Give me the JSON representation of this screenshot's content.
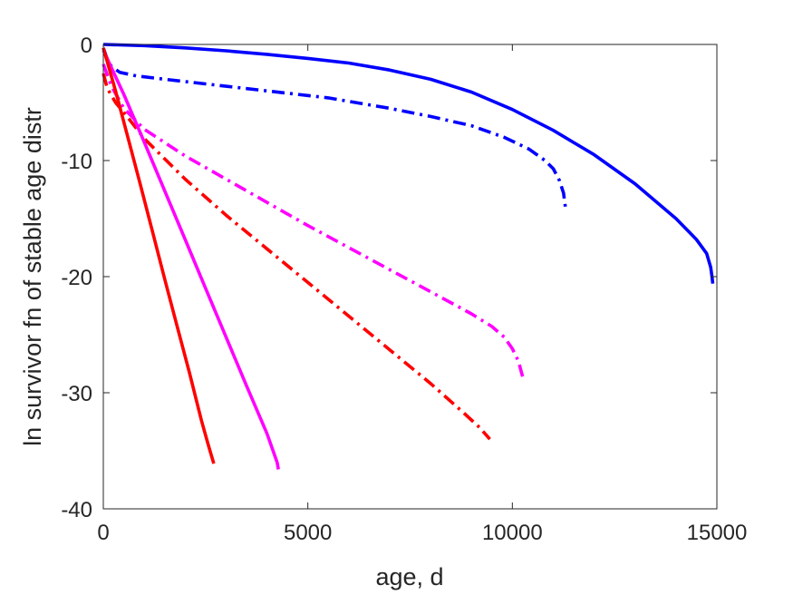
{
  "chart_data": {
    "type": "line",
    "title": "",
    "xlabel": "age, d",
    "ylabel": "ln survivor fn of stable age distr",
    "xlim": [
      0,
      15000
    ],
    "ylim": [
      -40,
      0
    ],
    "xticks": [
      0,
      5000,
      10000,
      15000
    ],
    "xtick_labels": [
      "0",
      "5000",
      "10000",
      "15000"
    ],
    "yticks": [
      -40,
      -30,
      -20,
      -10,
      0
    ],
    "ytick_labels": [
      "-40",
      "-30",
      "-20",
      "-10",
      "0"
    ],
    "grid": false,
    "legend": "none",
    "series": [
      {
        "color": "#0000ff",
        "style": "solid",
        "x": [
          0,
          1000,
          2000,
          3000,
          4000,
          5000,
          6000,
          7000,
          8000,
          9000,
          10000,
          11000,
          12000,
          13000,
          14000,
          14500,
          14750,
          14850,
          14880,
          14900
        ],
        "y": [
          0,
          -0.1,
          -0.3,
          -0.55,
          -0.85,
          -1.2,
          -1.6,
          -2.2,
          -3.0,
          -4.1,
          -5.6,
          -7.4,
          -9.5,
          -12.0,
          -15.0,
          -16.8,
          -18.0,
          -19.2,
          -20.0,
          -20.6
        ]
      },
      {
        "color": "#0000ff",
        "style": "dashdot",
        "x": [
          0,
          100,
          200,
          400,
          800,
          1500,
          2500,
          4000,
          5500,
          7000,
          8000,
          9000,
          9800,
          10400,
          10800,
          11000,
          11150,
          11250,
          11300
        ],
        "y": [
          -0.3,
          -1.3,
          -1.9,
          -2.4,
          -2.7,
          -3.0,
          -3.4,
          -4.0,
          -4.6,
          -5.5,
          -6.2,
          -7.0,
          -8.0,
          -9.0,
          -10.0,
          -10.7,
          -11.7,
          -12.8,
          -14.1
        ]
      },
      {
        "color": "#ff00ff",
        "style": "dashdot",
        "x": [
          0,
          200,
          500,
          1000,
          2000,
          3000,
          4000,
          5000,
          6000,
          7000,
          8000,
          9000,
          9500,
          9800,
          10000,
          10150,
          10250
        ],
        "y": [
          -1.7,
          -3.6,
          -5.5,
          -7.3,
          -9.6,
          -11.6,
          -13.6,
          -15.6,
          -17.5,
          -19.4,
          -21.3,
          -23.2,
          -24.3,
          -25.2,
          -26.2,
          -27.3,
          -28.6
        ]
      },
      {
        "color": "#ff0000",
        "style": "dashdot",
        "x": [
          0,
          100,
          300,
          600,
          1000,
          2000,
          3000,
          4000,
          5000,
          6000,
          7000,
          8000,
          8800,
          9200,
          9350,
          9450
        ],
        "y": [
          -2.5,
          -3.8,
          -5.0,
          -6.3,
          -8.1,
          -11.6,
          -14.7,
          -17.6,
          -20.5,
          -23.4,
          -26.3,
          -29.2,
          -31.7,
          -33.0,
          -33.6,
          -34.0
        ]
      },
      {
        "color": "#ff00ff",
        "style": "solid",
        "x": [
          0,
          500,
          1000,
          1500,
          2000,
          2500,
          3000,
          3500,
          4000,
          4150,
          4250,
          4280
        ],
        "y": [
          -0.5,
          -4.3,
          -8.4,
          -12.6,
          -16.8,
          -21.0,
          -25.2,
          -29.4,
          -33.5,
          -35.0,
          -36.0,
          -36.6
        ]
      },
      {
        "color": "#ff0000",
        "style": "solid",
        "x": [
          0,
          300,
          600,
          900,
          1200,
          1500,
          1800,
          2100,
          2400,
          2550,
          2650,
          2700
        ],
        "y": [
          -0.3,
          -4.0,
          -8.0,
          -12.0,
          -16.1,
          -20.2,
          -24.2,
          -28.2,
          -32.4,
          -34.3,
          -35.5,
          -36.1
        ]
      }
    ]
  }
}
